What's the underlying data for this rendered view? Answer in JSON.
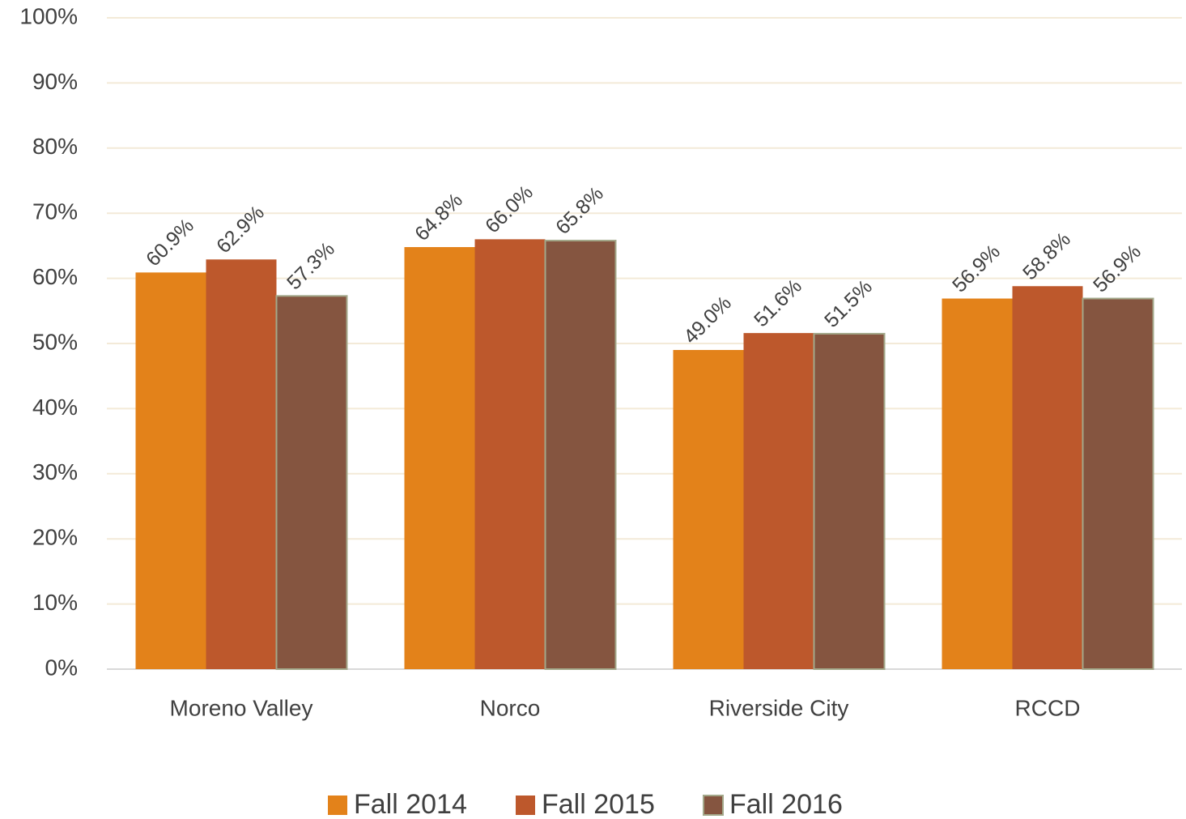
{
  "chart_data": {
    "type": "bar",
    "categories": [
      "Moreno Valley",
      "Norco",
      "Riverside City",
      "RCCD"
    ],
    "series": [
      {
        "name": "Fall 2014",
        "color": "#e3821a",
        "values": [
          60.9,
          64.8,
          49.0,
          56.9
        ],
        "value_labels": [
          "60.9%",
          "64.8%",
          "49.0%",
          "56.9%"
        ]
      },
      {
        "name": "Fall 2015",
        "color": "#bd582c",
        "values": [
          62.9,
          66.0,
          51.6,
          58.8
        ],
        "value_labels": [
          "62.9%",
          "66.0%",
          "51.6%",
          "58.8%"
        ]
      },
      {
        "name": "Fall 2016",
        "color": "#855540",
        "values": [
          57.3,
          65.8,
          51.5,
          56.9
        ],
        "value_labels": [
          "57.3%",
          "65.8%",
          "51.5%",
          "56.9%"
        ]
      }
    ],
    "ylim": [
      0,
      100
    ],
    "yticks": [
      {
        "value": 0,
        "label": "0%"
      },
      {
        "value": 10,
        "label": "10%"
      },
      {
        "value": 20,
        "label": "20%"
      },
      {
        "value": 30,
        "label": "30%"
      },
      {
        "value": 40,
        "label": "40%"
      },
      {
        "value": 50,
        "label": "50%"
      },
      {
        "value": 60,
        "label": "60%"
      },
      {
        "value": 70,
        "label": "70%"
      },
      {
        "value": 80,
        "label": "80%"
      },
      {
        "value": 90,
        "label": "90%"
      },
      {
        "value": 100,
        "label": "100%"
      }
    ],
    "grid": true,
    "legend": "bottom"
  }
}
